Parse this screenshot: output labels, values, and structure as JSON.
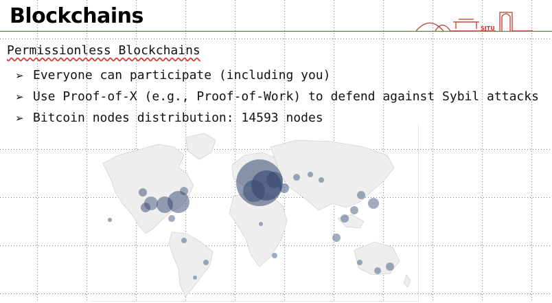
{
  "slide": {
    "title": "Blockchains",
    "logo_text": "SJTU",
    "subtitle": "Permissionless Blockchains",
    "bullet_marker": "➢",
    "bullets": [
      "Everyone can participate (including you)",
      "Use Proof-of-X (e.g., Proof-of-Work) to defend against Sybil attacks",
      "Bitcoin nodes distribution: 14593 nodes"
    ]
  },
  "colors": {
    "title_rule": "#c0392b",
    "land": "#efefef",
    "node": "#33466e"
  }
}
